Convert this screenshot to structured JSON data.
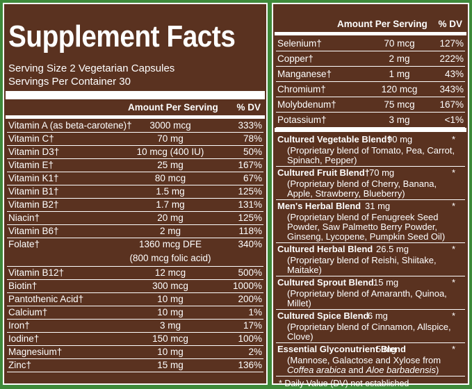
{
  "left": {
    "title": "Supplement Facts",
    "serving_size": "Serving Size 2 Vegetarian Capsules",
    "servings_per_container": "Servings Per Container 30",
    "col_amount": "Amount Per Serving",
    "col_dv": "% DV",
    "rows": [
      {
        "name": "Vitamin A (as beta-carotene)†",
        "amount": "3000 mcg",
        "dv": "333%"
      },
      {
        "name": "Vitamin C†",
        "amount": "70 mg",
        "dv": "78%"
      },
      {
        "name": "Vitamin D3†",
        "amount": "10 mcg (400 IU)",
        "dv": "50%"
      },
      {
        "name": "Vitamin E†",
        "amount": "25 mg",
        "dv": "167%"
      },
      {
        "name": "Vitamin K1†",
        "amount": "80 mcg",
        "dv": "67%"
      },
      {
        "name": "Vitamin B1†",
        "amount": "1.5 mg",
        "dv": "125%"
      },
      {
        "name": "Vitamin B2†",
        "amount": "1.7 mg",
        "dv": "131%"
      },
      {
        "name": "Niacin†",
        "amount": "20 mg",
        "dv": "125%"
      },
      {
        "name": "Vitamin B6†",
        "amount": "2 mg",
        "dv": "118%"
      },
      {
        "name": "Folate†",
        "amount": "1360 mcg DFE",
        "amount2": "(800 mcg folic acid)",
        "dv": "340%"
      },
      {
        "name": "Vitamin B12†",
        "amount": "12 mcg",
        "dv": "500%"
      },
      {
        "name": "Biotin†",
        "amount": "300 mcg",
        "dv": "1000%"
      },
      {
        "name": "Pantothenic Acid†",
        "amount": "10 mg",
        "dv": "200%"
      },
      {
        "name": "Calcium†",
        "amount": "10 mg",
        "dv": "1%"
      },
      {
        "name": "Iron†",
        "amount": "3 mg",
        "dv": "17%"
      },
      {
        "name": "Iodine†",
        "amount": "150 mcg",
        "dv": "100%"
      },
      {
        "name": "Magnesium†",
        "amount": "10 mg",
        "dv": "2%"
      },
      {
        "name": "Zinc†",
        "amount": "15 mg",
        "dv": "136%"
      }
    ]
  },
  "right": {
    "col_amount": "Amount Per Serving",
    "col_dv": "% DV",
    "rows": [
      {
        "name": "Selenium†",
        "amount": "70 mcg",
        "dv": "127%"
      },
      {
        "name": "Copper†",
        "amount": "2 mg",
        "dv": "222%"
      },
      {
        "name": "Manganese†",
        "amount": "1 mg",
        "dv": "43%"
      },
      {
        "name": "Chromium†",
        "amount": "120 mcg",
        "dv": "343%"
      },
      {
        "name": "Molybdenum†",
        "amount": "75 mcg",
        "dv": "167%"
      },
      {
        "name": "Potassium†",
        "amount": "3 mg",
        "dv": "<1%"
      }
    ],
    "blends": [
      {
        "name": "Cultured Vegetable Blend†",
        "amount": "90 mg",
        "dv": "*",
        "desc": "(Proprietary blend of Tomato, Pea, Carrot, Spinach, Pepper)"
      },
      {
        "name": "Cultured Fruit Blend†",
        "amount": "70 mg",
        "dv": "*",
        "desc": "(Proprietary blend of Cherry, Banana, Apple, Strawberry, Blueberry)"
      },
      {
        "name": "Men's Herbal Blend",
        "amount": "31 mg",
        "dv": "*",
        "desc": "(Proprietary blend of Fenugreek Seed Powder, Saw Palmetto Berry Powder, Ginseng, Lycopene, Pumpkin Seed Oil)"
      },
      {
        "name": "Cultured Herbal Blend",
        "amount": "26.5 mg",
        "dv": "*",
        "desc": "(Proprietary blend of Reishi, Shiitake, Maitake)"
      },
      {
        "name": "Cultured Sprout Blend",
        "amount": "15 mg",
        "dv": "*",
        "desc": "(Proprietary blend of Amaranth, Quinoa, Millet)"
      },
      {
        "name": "Cultured Spice Blend",
        "amount": "6 mg",
        "dv": "*",
        "desc": "(Proprietary blend of Cinnamon, Allspice, Clove)"
      },
      {
        "name": "Essential Glyconutrient Blend",
        "amount": "5 mg",
        "dv": "*",
        "desc": "(Mannose, Galactose and Xylose from",
        "desc_italic_1": "Coffea arabica",
        "desc_and": " and ",
        "desc_italic_2": "Aloe barbadensis",
        "desc_end": ")"
      }
    ],
    "footnote": "* Daily Value (DV) not established"
  }
}
